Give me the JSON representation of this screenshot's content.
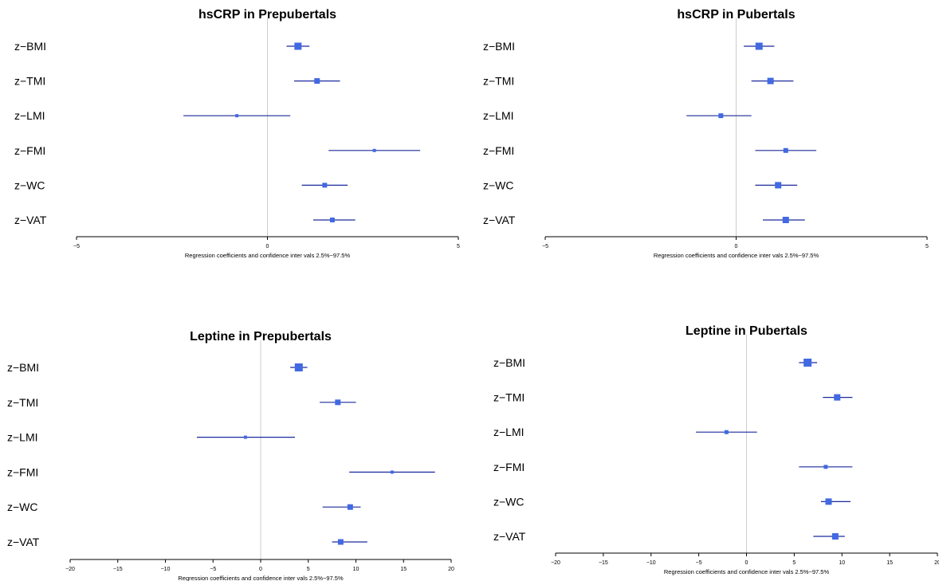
{
  "chart_data": [
    {
      "type": "forest",
      "title": "hsCRP in Prepubertals",
      "xlabel": "Regression coefficients and confidence inter vals 2.5%−97.5%",
      "xlim": [
        -5,
        5
      ],
      "xticks": [
        "−5",
        "0",
        "5"
      ],
      "reference_line": 0,
      "rows": [
        {
          "label": "z−BMI",
          "estimate": 0.8,
          "ci": [
            0.5,
            1.1
          ]
        },
        {
          "label": "z−TMI",
          "estimate": 1.3,
          "ci": [
            0.7,
            1.9
          ]
        },
        {
          "label": "z−LMI",
          "estimate": -0.8,
          "ci": [
            -2.2,
            0.6
          ]
        },
        {
          "label": "z−FMI",
          "estimate": 2.8,
          "ci": [
            1.6,
            4.0
          ]
        },
        {
          "label": "z−WC",
          "estimate": 1.5,
          "ci": [
            0.9,
            2.1
          ]
        },
        {
          "label": "z−VAT",
          "estimate": 1.7,
          "ci": [
            1.2,
            2.3
          ]
        }
      ]
    },
    {
      "type": "forest",
      "title": "hsCRP in Pubertals",
      "xlabel": "Regression coefficients and confidence inter vals 2.5%−97.5%",
      "xlim": [
        -5,
        5
      ],
      "xticks": [
        "−5",
        "0",
        "5"
      ],
      "reference_line": 0,
      "rows": [
        {
          "label": "z−BMI",
          "estimate": 0.6,
          "ci": [
            0.2,
            1.0
          ]
        },
        {
          "label": "z−TMI",
          "estimate": 0.9,
          "ci": [
            0.4,
            1.5
          ]
        },
        {
          "label": "z−LMI",
          "estimate": -0.4,
          "ci": [
            -1.3,
            0.4
          ]
        },
        {
          "label": "z−FMI",
          "estimate": 1.3,
          "ci": [
            0.5,
            2.1
          ]
        },
        {
          "label": "z−WC",
          "estimate": 1.1,
          "ci": [
            0.5,
            1.6
          ]
        },
        {
          "label": "z−VAT",
          "estimate": 1.3,
          "ci": [
            0.7,
            1.8
          ]
        }
      ]
    },
    {
      "type": "forest",
      "title": "Leptine in Prepubertals",
      "xlabel": "Regression coefficients and confidence inter vals 2.5%−97.5%",
      "xlim": [
        -20,
        20
      ],
      "xticks": [
        "−20",
        "−15",
        "−10",
        "−5",
        "0",
        "5",
        "10",
        "15",
        "20"
      ],
      "reference_line": 0,
      "rows": [
        {
          "label": "z−BMI",
          "estimate": 4.0,
          "ci": [
            3.1,
            4.9
          ]
        },
        {
          "label": "z−TMI",
          "estimate": 8.1,
          "ci": [
            6.2,
            10.0
          ]
        },
        {
          "label": "z−LMI",
          "estimate": -1.6,
          "ci": [
            -6.7,
            3.6
          ]
        },
        {
          "label": "z−FMI",
          "estimate": 13.8,
          "ci": [
            9.3,
            18.3
          ]
        },
        {
          "label": "z−WC",
          "estimate": 9.4,
          "ci": [
            6.5,
            10.5
          ]
        },
        {
          "label": "z−VAT",
          "estimate": 8.4,
          "ci": [
            7.5,
            11.2
          ]
        }
      ]
    },
    {
      "type": "forest",
      "title": "Leptine in Pubertals",
      "xlabel": "Regression coefficients and confidence inter vals 2.5%−97.5%",
      "xlim": [
        -20,
        20
      ],
      "xticks": [
        "−20",
        "−15",
        "−10",
        "−5",
        "0",
        "5",
        "10",
        "15",
        "20"
      ],
      "reference_line": 0,
      "rows": [
        {
          "label": "z−BMI",
          "estimate": 6.4,
          "ci": [
            5.5,
            7.4
          ]
        },
        {
          "label": "z−TMI",
          "estimate": 9.5,
          "ci": [
            8.0,
            11.1
          ]
        },
        {
          "label": "z−LMI",
          "estimate": -2.1,
          "ci": [
            -5.3,
            1.1
          ]
        },
        {
          "label": "z−FMI",
          "estimate": 8.3,
          "ci": [
            5.5,
            11.1
          ]
        },
        {
          "label": "z−WC",
          "estimate": 8.6,
          "ci": [
            7.8,
            10.9
          ]
        },
        {
          "label": "z−VAT",
          "estimate": 9.3,
          "ci": [
            7.0,
            10.3
          ]
        }
      ]
    }
  ],
  "colors": {
    "point": "#4169e1",
    "interval": "#1c2a9c",
    "reference_line": "#cccccc",
    "axis": "#000000"
  }
}
